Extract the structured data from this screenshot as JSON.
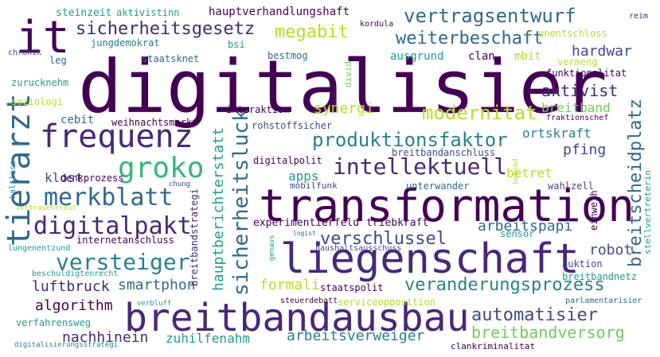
{
  "words": {
    "digitalisier": "digitalisier",
    "transformation": "transformation",
    "liegenschaft": "liegenschaft",
    "breitbandausbau": "breitbandausbau",
    "it": "it",
    "frequenz": "frequenz",
    "tierarzt": "tierarzt",
    "groko": "groko",
    "digitalpakt": "digitalpakt",
    "merkblatt": "merkblatt",
    "versteiger": "versteiger",
    "sicherheitsgesetz": "sicherheitsgesetz",
    "vertragsentwurf": "vertragsentwurf",
    "weiterbeschaft": "weiterbeschaft",
    "megabit": "megabit",
    "intellektuell": "intellektuell",
    "produktionsfaktor": "produktionsfaktor",
    "modernitat": "modernitat",
    "aktivist": "aktivist",
    "hardwar": "hardwar",
    "breitscheidplatz": "breitscheidplatz",
    "sicherheitsluck": "sicherheitsluck",
    "hauptberichterstatt": "hauptberichterstatt",
    "verschlussel": "verschlussel",
    "arbeitspapi": "arbeitspapi",
    "veranderungsprozess": "veranderungsprozess",
    "automatisier": "automatisier",
    "breitbandversorg": "breitbandversorg",
    "arbeitsverweiger": "arbeitsverweiger",
    "zuhilfenahm": "zuhilfenahm",
    "nachhinein": "nachhinein",
    "algorithm": "algorithm",
    "luftbruck": "luftbruck",
    "smartphon": "smartphon",
    "formali": "formali",
    "robot": "robot",
    "synergi": "synergi",
    "pfing": "pfing",
    "ortskraft": "ortskraft",
    "breitband": "breitband",
    "klost": "klost",
    "cebit": "cebit",
    "apps": "apps",
    "betret": "betret",
    "hauptverhandlungshaft": "hauptverhandlungshaft",
    "steinzeit": "steinzeit",
    "aktivistinn": "aktivistinn",
    "jungdemokrat": "jungdemokrat",
    "staatsknet": "staatsknet",
    "bsi": "bsi",
    "bestmog": "bestmog",
    "ausgrund": "ausgrund",
    "clan": "clan",
    "mbit": "mbit",
    "vermeng": "vermeng",
    "funktionalitat": "funktionalitat",
    "unentschloss": "unentschloss",
    "kordula": "kordula",
    "reim": "reim",
    "chronik": "chronik",
    "leg": "leg",
    "zurucknehm": "zurucknehm",
    "soziologi": "soziologi",
    "divid": "divid",
    "interaktion": "interaktion",
    "weihnachtsmarkt": "weihnachtsmarkt",
    "rohstoffsicher": "rohstoffsicher",
    "fraktionschef": "fraktionschef",
    "breitbandanschluss": "breitbandanschluss",
    "digitalpolit": "digitalpolit",
    "mobilfunk": "mobilfunk",
    "unterwander": "unterwander",
    "wahlzell": "wahlzell",
    "begnad": "begnad",
    "denkprozess": "denkprozess",
    "kaltlass": "kaltlass",
    "chung": "chung",
    "vertrauensleut": "vertrauensleut",
    "breitbandstrategi": "breitbandstrategi",
    "experimentierfeld": "experimentierfeld",
    "triebkraft": "triebkraft",
    "internetanschluss": "internetanschluss",
    "einweih": "einweih",
    "sensor": "sensor",
    "logist": "logist",
    "lungenentzund": "lungenentzund",
    "haushaltsausschuss": "haushaltsausschuss",
    "genaus": "genaus",
    "stellvertreterin": "stellvertreterin",
    "auktion": "auktion",
    "breitbandnetz": "breitbandnetz",
    "beschuldigtenrecht": "beschuldigtenrecht",
    "staatspolit": "staatspolit",
    "serviceopposition": "serviceopposition",
    "verbluff": "verbluff",
    "steuerdebatt": "steuerdebatt",
    "parlamentarisier": "parlamentarisier",
    "verfahrensweg": "verfahrensweg",
    "digitalisierungsstrategi": "digitalisierungsstrategi",
    "clankriminalitat": "clankriminalitat"
  }
}
